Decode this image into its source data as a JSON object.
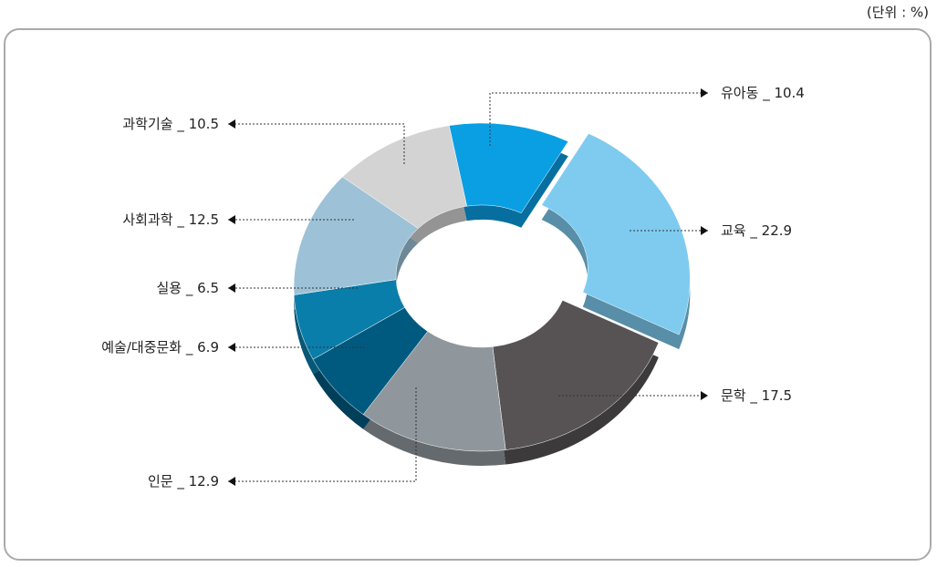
{
  "chart_data": {
    "type": "donut",
    "unit": "(단위 : %)",
    "categories": [
      "유아동",
      "교육",
      "문학",
      "인문",
      "예술/대중문화",
      "실용",
      "사회과학",
      "과학기술"
    ],
    "values": [
      10.4,
      22.9,
      17.5,
      12.9,
      6.9,
      6.5,
      12.5,
      10.5
    ],
    "value_labels": [
      "_ 10.4",
      "_ 22.9",
      "_ 17.5",
      "_ 12.9",
      "_ 6.9",
      "_ 6.5",
      "_ 12.5",
      "_ 10.5"
    ],
    "colors": [
      "#0a9fe3",
      "#7ecbef",
      "#575354",
      "#8f979d",
      "#005a80",
      "#0a7eaa",
      "#9dc2d7",
      "#d3d3d3"
    ],
    "exploded": "교육"
  }
}
